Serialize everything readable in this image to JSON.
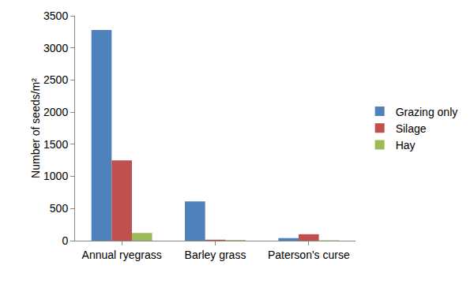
{
  "chart_data": {
    "type": "bar",
    "categories": [
      "Annual ryegrass",
      "Barley grass",
      "Paterson's curse"
    ],
    "series": [
      {
        "name": "Grazing only",
        "color": "#4f81bd",
        "values": [
          3280,
          610,
          40
        ]
      },
      {
        "name": "Silage",
        "color": "#c0504d",
        "values": [
          1250,
          15,
          100
        ]
      },
      {
        "name": "Hay",
        "color": "#9bbb59",
        "values": [
          120,
          10,
          5
        ]
      }
    ],
    "y_label": "Number of seeds/m²",
    "ylim": [
      0,
      3500
    ],
    "yticks": [
      0,
      500,
      1000,
      1500,
      2000,
      2500,
      3000,
      3500
    ],
    "grid": false,
    "legend": "right"
  }
}
